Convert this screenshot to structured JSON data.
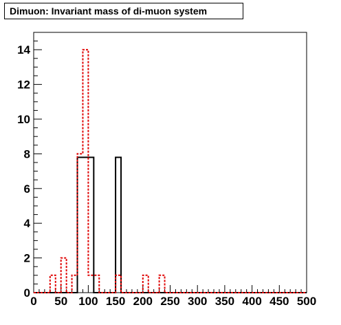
{
  "chart_data": {
    "type": "histogram",
    "title": "Dimuon: Invariant mass of di-muon system",
    "xlabel": "",
    "ylabel": "",
    "xlim": [
      0,
      500
    ],
    "ylim": [
      0,
      15
    ],
    "bin_width": 10,
    "x_ticks": [
      "0",
      "50",
      "100",
      "150",
      "200",
      "250",
      "300",
      "350",
      "400",
      "450",
      "500"
    ],
    "y_ticks": [
      "0",
      "2",
      "4",
      "6",
      "8",
      "10",
      "12",
      "14"
    ],
    "grid": false,
    "legend": "none",
    "series": [
      {
        "style": "solid",
        "color": "#000000",
        "bins": [
          {
            "x0": 80,
            "x1": 90,
            "value": 7.8
          },
          {
            "x0": 90,
            "x1": 100,
            "value": 7.8
          },
          {
            "x0": 100,
            "x1": 110,
            "value": 7.8
          },
          {
            "x0": 150,
            "x1": 160,
            "value": 7.8
          }
        ]
      },
      {
        "style": "dotted",
        "color": "#e00000",
        "bins": [
          {
            "x0": 30,
            "x1": 40,
            "value": 1
          },
          {
            "x0": 50,
            "x1": 60,
            "value": 2
          },
          {
            "x0": 70,
            "x1": 80,
            "value": 1
          },
          {
            "x0": 80,
            "x1": 90,
            "value": 8
          },
          {
            "x0": 90,
            "x1": 100,
            "value": 14
          },
          {
            "x0": 100,
            "x1": 110,
            "value": 1
          },
          {
            "x0": 110,
            "x1": 120,
            "value": 1
          },
          {
            "x0": 150,
            "x1": 160,
            "value": 1
          },
          {
            "x0": 200,
            "x1": 210,
            "value": 1
          },
          {
            "x0": 230,
            "x1": 240,
            "value": 1
          }
        ]
      }
    ]
  }
}
